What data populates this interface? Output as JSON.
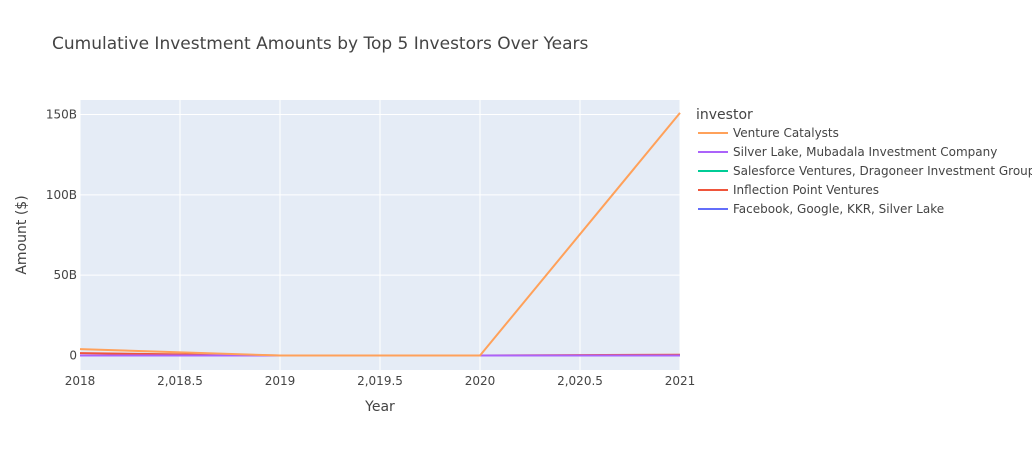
{
  "chart_data": {
    "type": "line",
    "title": "Cumulative Investment Amounts by Top 5 Investors Over Years",
    "xlabel": "Year",
    "ylabel": "Amount ($)",
    "xlim": [
      2018,
      2021
    ],
    "ylim": [
      -9,
      159
    ],
    "x_ticks": [
      {
        "value": 2018,
        "label": "2018"
      },
      {
        "value": 2018.5,
        "label": "2,018.5"
      },
      {
        "value": 2019,
        "label": "2019"
      },
      {
        "value": 2019.5,
        "label": "2,019.5"
      },
      {
        "value": 2020,
        "label": "2020"
      },
      {
        "value": 2020.5,
        "label": "2,020.5"
      },
      {
        "value": 2021,
        "label": "2021"
      }
    ],
    "y_ticks": [
      {
        "value": 0,
        "label": "0"
      },
      {
        "value": 50,
        "label": "50B"
      },
      {
        "value": 100,
        "label": "100B"
      },
      {
        "value": 150,
        "label": "150B"
      }
    ],
    "y_unit": "billions of $",
    "legend_title": "investor",
    "legend_position": "right",
    "grid": true,
    "series": [
      {
        "name": "Venture Catalysts",
        "color": "#FFA15A",
        "x": [
          2018,
          2019,
          2020,
          2021
        ],
        "y": [
          4,
          0,
          0,
          151
        ]
      },
      {
        "name": "Silver Lake, Mubadala Investment Company",
        "color": "#AB63FA",
        "x": [
          2018,
          2019,
          2020,
          2021
        ],
        "y": [
          0,
          0,
          0,
          0
        ]
      },
      {
        "name": "Salesforce Ventures, Dragoneer Investment Group",
        "color": "#00CC96",
        "x": [
          2018,
          2019,
          2020,
          2021
        ],
        "y": [
          0,
          0,
          0,
          0
        ]
      },
      {
        "name": "Inflection Point Ventures",
        "color": "#EF553B",
        "x": [
          2018,
          2019,
          2020,
          2021
        ],
        "y": [
          1.5,
          0,
          0,
          0.5
        ]
      },
      {
        "name": "Facebook, Google, KKR, Silver Lake",
        "color": "#636EFA",
        "x": [
          2018,
          2019,
          2020,
          2021
        ],
        "y": [
          0,
          0,
          0,
          0
        ]
      }
    ]
  }
}
